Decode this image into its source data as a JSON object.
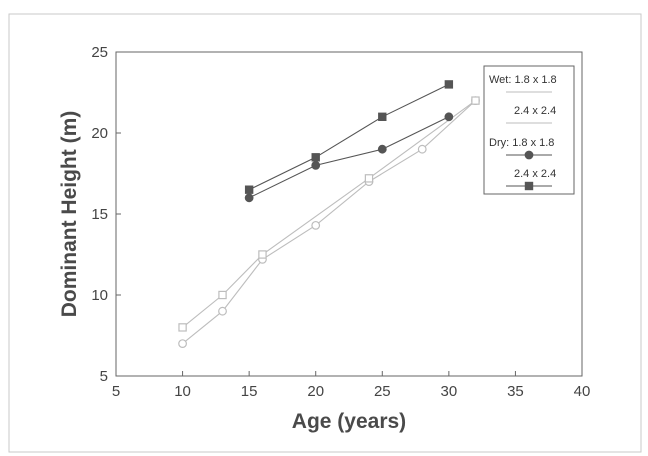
{
  "chart_data": {
    "type": "line",
    "title": "",
    "xlabel": "Age (years)",
    "ylabel": "Dominant Height (m)",
    "xlim": [
      5,
      40
    ],
    "ylim": [
      5,
      25
    ],
    "xticks": [
      5,
      10,
      15,
      20,
      25,
      30,
      35,
      40
    ],
    "yticks": [
      5,
      10,
      15,
      20,
      25
    ],
    "grid": false,
    "legend_position": "top-right",
    "series": [
      {
        "name": "Wet: 1.8 x 1.8",
        "marker": "open-circle",
        "color": "#bdbdbd",
        "x": [
          10,
          13,
          16,
          20,
          24,
          28,
          32
        ],
        "y": [
          7,
          9,
          12.2,
          14.3,
          17,
          19,
          22
        ]
      },
      {
        "name": "2.4 x 2.4",
        "marker": "open-square",
        "color": "#bdbdbd",
        "x": [
          10,
          13,
          16,
          24,
          32
        ],
        "y": [
          8,
          10,
          12.5,
          17.2,
          22
        ]
      },
      {
        "name": "Dry: 1.8 x 1.8",
        "marker": "filled-circle",
        "color": "#555555",
        "x": [
          15,
          20,
          25,
          30
        ],
        "y": [
          16,
          18,
          19,
          21
        ]
      },
      {
        "name": "2.4 x 2.4",
        "marker": "filled-square",
        "color": "#555555",
        "x": [
          15,
          20,
          25,
          30
        ],
        "y": [
          16.5,
          18.5,
          21,
          23
        ]
      }
    ]
  }
}
